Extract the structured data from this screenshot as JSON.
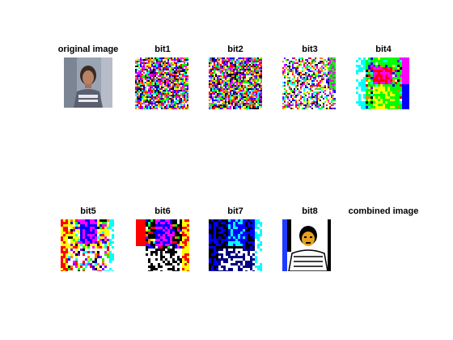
{
  "figure": {
    "background": "#ffffff",
    "panels": [
      {
        "id": "original",
        "title": "original image",
        "kind": "photo"
      },
      {
        "id": "bit1",
        "title": "bit1",
        "kind": "noise"
      },
      {
        "id": "bit2",
        "title": "bit2",
        "kind": "noise"
      },
      {
        "id": "bit3",
        "title": "bit3",
        "kind": "mixed"
      },
      {
        "id": "bit4",
        "title": "bit4",
        "kind": "blocks"
      },
      {
        "id": "bit5",
        "title": "bit5",
        "kind": "blocks"
      },
      {
        "id": "bit6",
        "title": "bit6",
        "kind": "portrait-rainbow"
      },
      {
        "id": "bit7",
        "title": "bit7",
        "kind": "portrait-blue"
      },
      {
        "id": "bit8",
        "title": "bit8",
        "kind": "portrait-bw"
      },
      {
        "id": "combined",
        "title": "combined image",
        "kind": "empty"
      }
    ]
  }
}
